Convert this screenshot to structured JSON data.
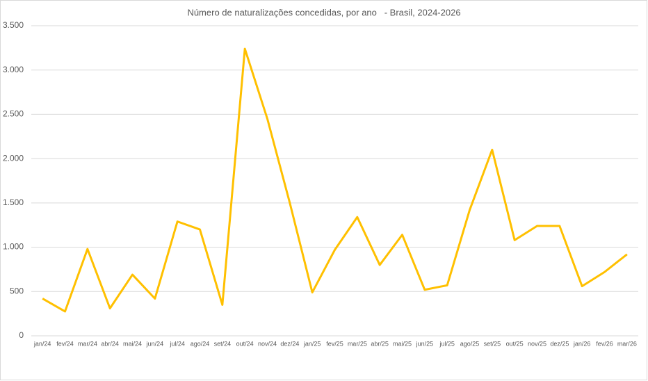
{
  "chart_data": {
    "type": "line",
    "title": "Número de naturalizações concedidas, por ano   - Brasil, 2024-2026",
    "categories": [
      "jan/24",
      "fev/24",
      "mar/24",
      "abr/24",
      "mai/24",
      "jun/24",
      "jul/24",
      "ago/24",
      "set/24",
      "out/24",
      "nov/24",
      "dez/24",
      "jan/25",
      "fev/25",
      "mar/25",
      "abr/25",
      "mai/25",
      "jun/25",
      "jul/25",
      "ago/25",
      "set/25",
      "out/25",
      "nov/25",
      "dez/25",
      "jan/26",
      "fev/26",
      "mar/26"
    ],
    "series": [
      {
        "color": "#ffc000",
        "values": [
          420,
          275,
          980,
          310,
          690,
          420,
          1290,
          1200,
          350,
          3240,
          2450,
          1500,
          490,
          970,
          1340,
          800,
          1140,
          520,
          570,
          1420,
          2100,
          1080,
          1240,
          1240,
          560,
          720,
          920
        ]
      }
    ],
    "ylim": [
      0,
      3500
    ],
    "yticks": [
      0,
      500,
      {
        "value": 1000,
        "label": "1.000"
      },
      {
        "value": 1500,
        "label": "1.500"
      },
      {
        "value": 2000,
        "label": "2.000"
      },
      {
        "value": 2500,
        "label": "2.500"
      },
      {
        "value": 3000,
        "label": "3.000"
      },
      {
        "value": 3500,
        "label": "3.500"
      }
    ],
    "grid": true
  }
}
